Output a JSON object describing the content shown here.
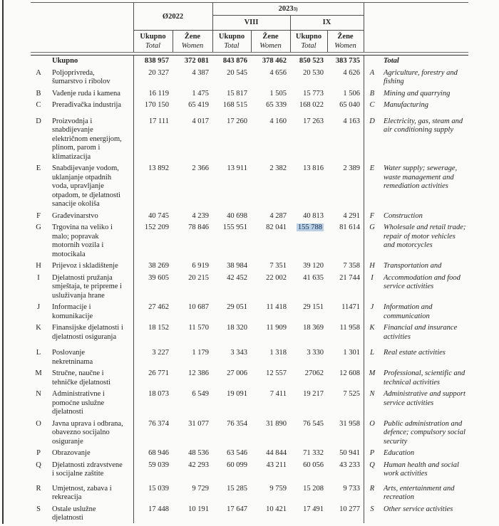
{
  "table": {
    "header": {
      "avg2022": "Ø2022",
      "year2023": "2023",
      "year2023_footnote": "3)",
      "month1": "VIII",
      "month2": "IX",
      "total_bs": "Ukupno",
      "total_en": "Total",
      "women_bs": "Žene",
      "women_en": "Women"
    },
    "highlight_color": "#b9d0e5",
    "highlight_text_color": "#122c4e",
    "total_row": {
      "bs": "Ukupno",
      "en": "Total",
      "values": [
        "838 957",
        "372 081",
        "843 876",
        "378 462",
        "850 523",
        "383 735"
      ]
    },
    "rows": [
      {
        "code": "A",
        "bs": "Poljoprivreda, šumarstvo i ribolov",
        "en": "Agriculture, forestry and fishing",
        "values": [
          "20 327",
          "4 387",
          "20 545",
          "4 656",
          "20 530",
          "4 626"
        ]
      },
      {
        "code": "B",
        "bs": "Vađenje ruda i kamena",
        "en": "Mining and quarrying",
        "values": [
          "16 119",
          "1 475",
          "15 817",
          "1 505",
          "15 773",
          "1 506"
        ]
      },
      {
        "code": "C",
        "bs": "Prerađivačka industrija",
        "en": "Manufacturing",
        "values": [
          "170 150",
          "65 419",
          "168 515",
          "65 339",
          "168 022",
          "65 040"
        ]
      },
      {
        "code": "D",
        "bs": "Proizvodnja i snabdijevanje električnom energijom, plinom, parom i klimatizacija",
        "en": "Electricity, gas, steam and air conditioning supply",
        "values": [
          "17 111",
          "4 017",
          "17 260",
          "4 160",
          "17 263",
          "4 163"
        ]
      },
      {
        "code": "E",
        "bs": "Snabdijevanje vodom, uklanjanje otpadnih voda, upravljanje otpadom, te djelatnosti sanacije okoliša",
        "en": "Water supply; sewerage, waste management and remediation activities",
        "values": [
          "13 892",
          "2 366",
          "13 911",
          "2 382",
          "13 816",
          "2 389"
        ]
      },
      {
        "code": "F",
        "bs": "Građevinarstvo",
        "en": "Construction",
        "values": [
          "40 745",
          "4 239",
          "40 698",
          "4 287",
          "40 813",
          "4 291"
        ]
      },
      {
        "code": "G",
        "bs": "Trgovina na veliko i malo; popravak motornih vozila i motocikala",
        "en": "Wholesale and retail trade; repair of motor vehicles and motorcycles",
        "values": [
          "152 209",
          "78 846",
          "155 951",
          "82 041",
          "155 788",
          "81 614"
        ],
        "highlight_index": 4
      },
      {
        "code": "H",
        "bs": "Prijevoz i skladištenje",
        "en": "Transportation and",
        "values": [
          "38 269",
          "6 919",
          "38 984",
          "7 351",
          "39 120",
          "7 358"
        ]
      },
      {
        "code": "I",
        "bs": "Djelatnosti pružanja smještaja, te pripreme i usluživanja hrane",
        "en": "Accommodation and food service activities",
        "values": [
          "39 605",
          "20 215",
          "42 452",
          "22 002",
          "41 635",
          "21 744"
        ]
      },
      {
        "code": "J",
        "bs": "Informacije i komunikacije",
        "en": "Information and communication",
        "values": [
          "27 462",
          "10 687",
          "29 051",
          "11 418",
          "29 151",
          "11471"
        ]
      },
      {
        "code": "K",
        "bs": "Finansijske djelatnosti i djelatnosti osiguranja",
        "en": "Financial and insurance activities",
        "values": [
          "18 152",
          "11 570",
          "18 320",
          "11 909",
          "18 369",
          "11 958"
        ]
      },
      {
        "code": "L",
        "bs": "Poslovanje nekretninama",
        "en": "Real estate activities",
        "values": [
          "3 227",
          "1 179",
          "3 343",
          "1 318",
          "3 330",
          "1 301"
        ]
      },
      {
        "code": "M",
        "bs": "Stručne, naučne i tehničke djelatnosti",
        "en": "Professional, scientific and technical activities",
        "values": [
          "26 771",
          "12 386",
          "27 006",
          "12 557",
          "27062",
          "12 608"
        ]
      },
      {
        "code": "N",
        "bs": "Administrativne i pomoćne uslužne djelatnosti",
        "en": "Administrative and support service activities",
        "values": [
          "18 073",
          "6 549",
          "19 091",
          "7 411",
          "19 217",
          "7 525"
        ]
      },
      {
        "code": "O",
        "bs": "Javna uprava i odbrana, obavezno socijalno osiguranje",
        "en": "Public administration and defence; compulsory social security",
        "values": [
          "76 374",
          "31 077",
          "76 354",
          "31 890",
          "76 545",
          "31 958"
        ]
      },
      {
        "code": "P",
        "bs": "Obrazovanje",
        "en": "Education",
        "values": [
          "68 946",
          "48 536",
          "63 546",
          "44 844",
          "71 332",
          "50 941"
        ]
      },
      {
        "code": "Q",
        "bs": "Djelatnosti zdravstvene i socijalne zaštite",
        "en": "Human health and social work activities",
        "values": [
          "59 039",
          "42 293",
          "60 099",
          "43 211",
          "60 056",
          "43 233"
        ]
      },
      {
        "code": "R",
        "bs": "Umjetnost, zabava i rekreacija",
        "en": "Arts, entertainment and recreation",
        "values": [
          "15 039",
          "9 729",
          "15 285",
          "9 759",
          "15 208",
          "9 733"
        ]
      },
      {
        "code": "S",
        "bs": "Ostale uslužne djelatnosti",
        "en": "Other service activities",
        "values": [
          "17 448",
          "10 191",
          "17 647",
          "10 421",
          "17 491",
          "10 277"
        ]
      }
    ]
  }
}
